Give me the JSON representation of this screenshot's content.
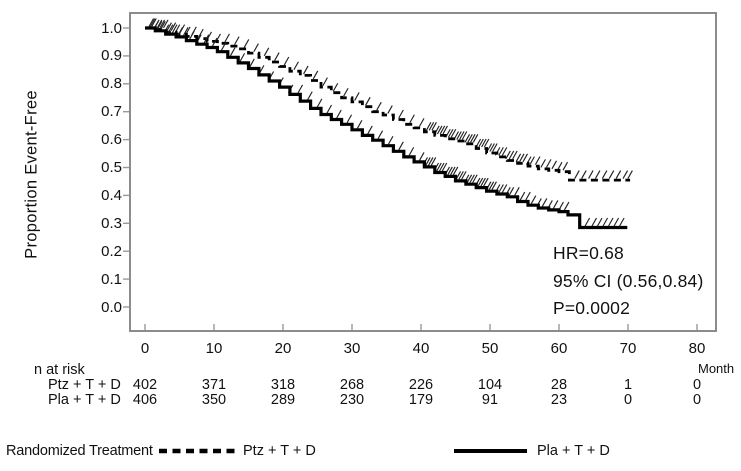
{
  "figure": {
    "ylabel": "Proportion Event-Free",
    "xlabel": "Month",
    "annotation": {
      "hr": "HR=0.68",
      "ci": "95% CI (0.56,0.84)",
      "p": "P=0.0002"
    },
    "n_at_risk": {
      "title": "n at risk",
      "rows": [
        {
          "label": "Ptz + T + D",
          "counts": [
            "402",
            "371",
            "318",
            "268",
            "226",
            "104",
            "28",
            "1",
            "0"
          ]
        },
        {
          "label": "Pla + T + D",
          "counts": [
            "406",
            "350",
            "289",
            "230",
            "179",
            "91",
            "23",
            "0",
            "0"
          ]
        }
      ]
    },
    "legend": {
      "title": "Randomized Treatment",
      "items": [
        {
          "label": "Ptz + T + D",
          "style": "dashed"
        },
        {
          "label": "Pla + T + D",
          "style": "solid"
        }
      ]
    }
  },
  "chart_data": {
    "type": "line",
    "subtype": "kaplan-meier-step",
    "title": "",
    "xlabel": "Month",
    "ylabel": "Proportion Event-Free",
    "xlim": [
      0,
      80
    ],
    "ylim": [
      0.0,
      1.0
    ],
    "xticks": [
      0,
      10,
      20,
      30,
      40,
      50,
      60,
      70,
      80
    ],
    "yticks": [
      1.0,
      0.9,
      0.8,
      0.7,
      0.6,
      0.5,
      0.4,
      0.3,
      0.2,
      0.1,
      0.0
    ],
    "grid": false,
    "legend_position": "bottom",
    "stats": {
      "hr": 0.68,
      "ci_low": 0.56,
      "ci_high": 0.84,
      "p_value": 0.0002
    },
    "series": [
      {
        "name": "Ptz + T + D",
        "style": "dashed",
        "color": "#000000",
        "steps": [
          [
            0,
            1.0
          ],
          [
            1.5,
            0.995
          ],
          [
            3,
            0.985
          ],
          [
            4.5,
            0.978
          ],
          [
            6,
            0.97
          ],
          [
            7.5,
            0.962
          ],
          [
            9,
            0.952
          ],
          [
            10.5,
            0.945
          ],
          [
            12,
            0.935
          ],
          [
            13.5,
            0.925
          ],
          [
            15,
            0.91
          ],
          [
            16.5,
            0.895
          ],
          [
            18,
            0.878
          ],
          [
            19.5,
            0.862
          ],
          [
            21,
            0.845
          ],
          [
            22.5,
            0.83
          ],
          [
            24,
            0.812
          ],
          [
            25.5,
            0.788
          ],
          [
            27,
            0.768
          ],
          [
            28.5,
            0.75
          ],
          [
            30,
            0.735
          ],
          [
            31.5,
            0.718
          ],
          [
            33,
            0.7
          ],
          [
            34.5,
            0.688
          ],
          [
            36,
            0.672
          ],
          [
            37.5,
            0.655
          ],
          [
            39,
            0.642
          ],
          [
            40.5,
            0.628
          ],
          [
            42,
            0.615
          ],
          [
            43.5,
            0.603
          ],
          [
            45,
            0.595
          ],
          [
            46.5,
            0.585
          ],
          [
            48,
            0.568
          ],
          [
            49.5,
            0.552
          ],
          [
            51,
            0.538
          ],
          [
            52.5,
            0.525
          ],
          [
            54,
            0.515
          ],
          [
            55.5,
            0.505
          ],
          [
            57,
            0.495
          ],
          [
            58.5,
            0.49
          ],
          [
            60,
            0.485
          ],
          [
            61.5,
            0.455
          ],
          [
            70.3,
            0.455
          ]
        ],
        "censor_months": [
          0.8,
          1.2,
          1.6,
          2.0,
          2.4,
          2.9,
          3.4,
          4.0,
          4.6,
          5.3,
          6.1,
          7.0,
          8.0,
          9.2,
          10.5,
          11.8,
          13.2,
          14.6,
          16.0,
          17.5,
          19.0,
          20.4,
          21.8,
          23.2,
          24.6,
          26.0,
          27.5,
          29.0,
          30.6,
          32.2,
          33.8,
          35.4,
          37.0,
          38.6,
          40.0,
          41.0,
          41.4,
          41.8,
          42.2,
          42.6,
          43.0,
          43.4,
          43.8,
          44.2,
          44.6,
          45.0,
          45.4,
          45.8,
          46.2,
          46.6,
          47.0,
          47.4,
          47.8,
          48.2,
          48.6,
          49.0,
          49.4,
          49.8,
          50.2,
          50.6,
          51.0,
          51.5,
          52.0,
          52.5,
          53.0,
          53.5,
          54.0,
          54.5,
          55.0,
          55.5,
          56.0,
          56.8,
          57.6,
          58.4,
          59.2,
          60.0,
          60.8,
          62.5,
          63.5,
          64.5,
          65.5,
          66.5,
          67.5,
          68.5,
          69.5,
          70.2
        ]
      },
      {
        "name": "Pla + T + D",
        "style": "solid",
        "color": "#000000",
        "steps": [
          [
            0,
            1.0
          ],
          [
            1.5,
            0.99
          ],
          [
            3,
            0.978
          ],
          [
            4.5,
            0.968
          ],
          [
            6,
            0.955
          ],
          [
            7.5,
            0.942
          ],
          [
            9,
            0.93
          ],
          [
            10.5,
            0.915
          ],
          [
            12,
            0.895
          ],
          [
            13.5,
            0.875
          ],
          [
            15,
            0.855
          ],
          [
            16.5,
            0.832
          ],
          [
            18,
            0.81
          ],
          [
            19.5,
            0.788
          ],
          [
            21,
            0.762
          ],
          [
            22.5,
            0.738
          ],
          [
            24,
            0.712
          ],
          [
            25.5,
            0.69
          ],
          [
            27,
            0.672
          ],
          [
            28.5,
            0.655
          ],
          [
            30,
            0.635
          ],
          [
            31.5,
            0.615
          ],
          [
            33,
            0.598
          ],
          [
            34.5,
            0.578
          ],
          [
            36,
            0.558
          ],
          [
            37.5,
            0.538
          ],
          [
            39,
            0.52
          ],
          [
            40.5,
            0.502
          ],
          [
            42,
            0.482
          ],
          [
            43.5,
            0.468
          ],
          [
            45,
            0.452
          ],
          [
            46.5,
            0.44
          ],
          [
            48,
            0.428
          ],
          [
            49.5,
            0.415
          ],
          [
            51,
            0.405
          ],
          [
            52.5,
            0.395
          ],
          [
            54,
            0.378
          ],
          [
            55.5,
            0.365
          ],
          [
            57,
            0.355
          ],
          [
            58.5,
            0.348
          ],
          [
            60,
            0.342
          ],
          [
            61.3,
            0.33
          ],
          [
            63,
            0.285
          ],
          [
            69.9,
            0.285
          ]
        ],
        "censor_months": [
          1.0,
          1.5,
          2.0,
          2.5,
          3.0,
          3.6,
          4.2,
          5.0,
          5.8,
          6.7,
          7.7,
          8.8,
          10.0,
          11.3,
          12.6,
          14.0,
          15.4,
          16.8,
          18.2,
          19.6,
          21.0,
          22.4,
          23.8,
          25.2,
          26.6,
          28.0,
          29.5,
          31.0,
          32.5,
          34.0,
          35.5,
          37.0,
          38.5,
          40.0,
          40.5,
          40.9,
          41.3,
          41.7,
          42.1,
          42.5,
          42.9,
          43.3,
          43.7,
          44.1,
          44.5,
          44.9,
          45.3,
          45.7,
          46.1,
          46.5,
          46.9,
          47.3,
          47.7,
          48.1,
          48.5,
          48.9,
          49.3,
          49.7,
          50.1,
          50.5,
          51.0,
          51.5,
          52.0,
          52.5,
          53.0,
          53.8,
          54.6,
          55.4,
          56.2,
          57.0,
          57.8,
          58.6,
          59.4,
          60.2,
          61.0,
          64.0,
          65.0,
          65.8,
          66.6,
          67.4,
          68.2,
          69.0
        ]
      }
    ]
  },
  "colors": {
    "curve": "#000000",
    "frame": "#7f7f7f",
    "tick": "#999999",
    "text": "#111111",
    "background": "#ffffff"
  }
}
